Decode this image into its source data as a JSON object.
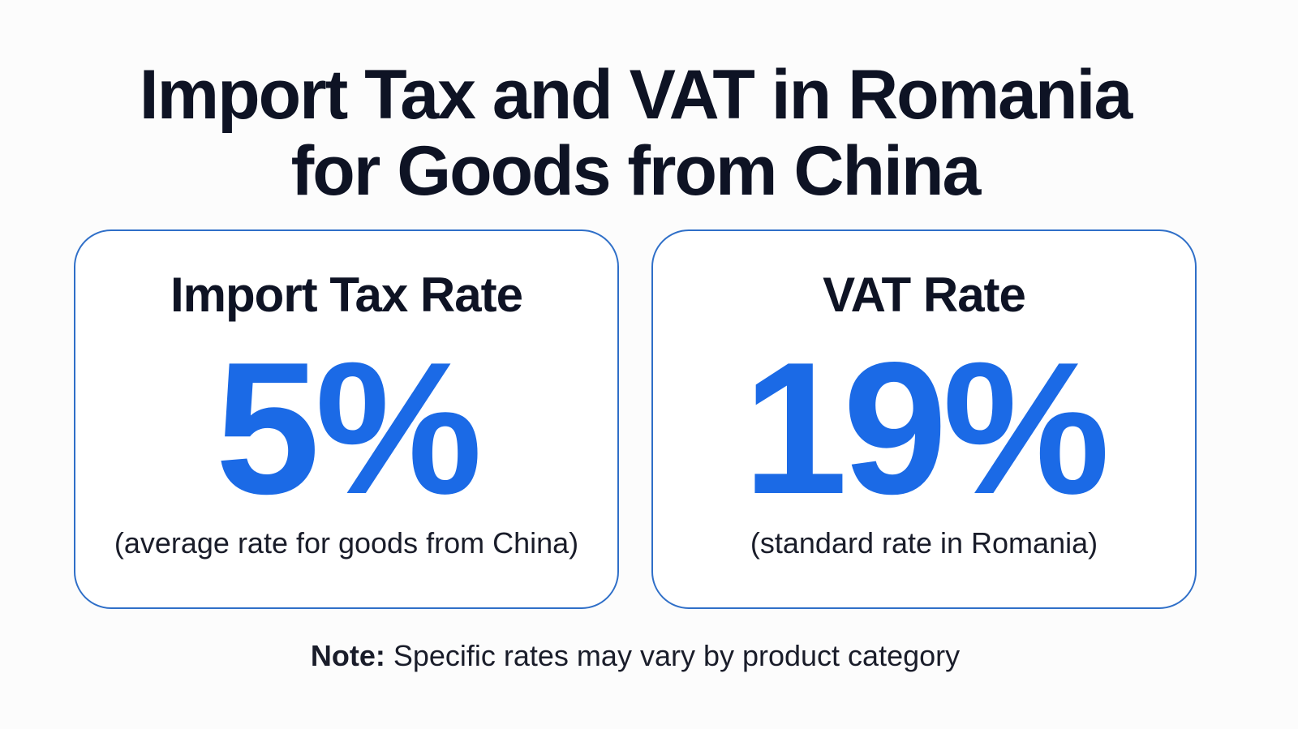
{
  "title": {
    "line1": "Import Tax and VAT in Romania",
    "line2": "for Goods from China"
  },
  "cards": [
    {
      "heading": "Import Tax Rate",
      "value": "5%",
      "subtitle": "(average rate for goods from China)"
    },
    {
      "heading": "VAT Rate",
      "value": "19%",
      "subtitle": "(standard rate in Romania)"
    }
  ],
  "note": {
    "label": "Note:",
    "text": " Specific rates may vary by product category"
  },
  "colors": {
    "accent": "#1b6ae6",
    "border": "#2f6fc8",
    "text": "#0e1324"
  }
}
